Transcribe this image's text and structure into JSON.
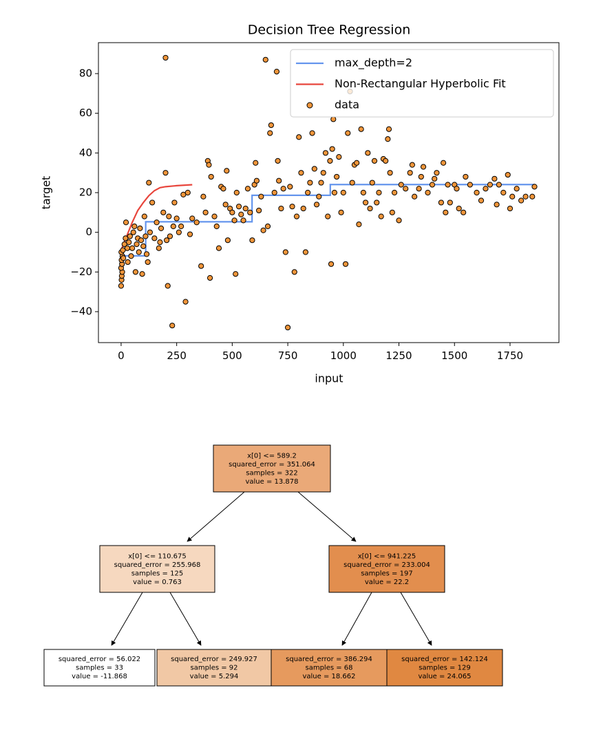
{
  "chart_data": {
    "type": "scatter",
    "title": "Decision Tree Regression",
    "x_label": "input",
    "y_label": "target",
    "xlim": [
      -102,
      1970
    ],
    "ylim": [
      -55.6,
      95.6
    ],
    "xticks": [
      0,
      250,
      500,
      750,
      1000,
      1250,
      1500,
      1750
    ],
    "yticks": [
      {
        "value": -40,
        "label": "−40"
      },
      {
        "value": -20,
        "label": "−20"
      },
      0,
      20,
      40,
      60,
      80
    ],
    "legend": "upper right",
    "series": [
      {
        "name": "max_depth=2",
        "type": "line",
        "color": "#6495ed",
        "x": [
          0,
          110.675,
          110.675,
          589.2,
          589.2,
          941.225,
          941.225,
          1860
        ],
        "values": [
          -11.868,
          -11.868,
          5.294,
          5.294,
          18.662,
          18.662,
          24.065,
          24.065
        ]
      },
      {
        "name": "Non-Rectangular Hyperbolic Fit",
        "type": "line",
        "color": "#e8453c",
        "x": [
          0,
          25,
          50,
          75,
          100,
          125,
          150,
          175,
          200,
          250,
          320
        ],
        "values": [
          -9,
          -2,
          5,
          11,
          15,
          18.5,
          21,
          22.5,
          23,
          23.5,
          24
        ]
      },
      {
        "name": "data",
        "type": "scatter",
        "color": "#f0953a",
        "x": [
          0,
          2,
          3,
          5,
          0,
          4,
          2,
          6,
          1,
          8,
          10,
          15,
          20,
          22,
          28,
          30,
          35,
          40,
          45,
          50,
          55,
          60,
          65,
          70,
          75,
          80,
          85,
          90,
          95,
          100,
          105,
          110,
          115,
          120,
          125,
          130,
          140,
          150,
          160,
          170,
          175,
          180,
          190,
          200,
          200,
          205,
          210,
          215,
          220,
          230,
          235,
          240,
          250,
          260,
          270,
          280,
          290,
          300,
          310,
          320,
          340,
          360,
          370,
          380,
          390,
          395,
          400,
          405,
          420,
          430,
          440,
          450,
          460,
          470,
          475,
          480,
          490,
          500,
          510,
          515,
          520,
          530,
          540,
          550,
          560,
          570,
          580,
          590,
          600,
          605,
          610,
          620,
          630,
          640,
          650,
          660,
          670,
          675,
          690,
          700,
          705,
          710,
          720,
          730,
          740,
          750,
          760,
          770,
          780,
          790,
          800,
          810,
          820,
          830,
          840,
          850,
          860,
          870,
          880,
          890,
          900,
          910,
          920,
          930,
          940,
          945,
          950,
          955,
          960,
          970,
          980,
          990,
          1000,
          1010,
          1020,
          1030,
          1040,
          1050,
          1060,
          1070,
          1080,
          1090,
          1100,
          1110,
          1120,
          1130,
          1140,
          1150,
          1160,
          1170,
          1180,
          1190,
          1200,
          1205,
          1210,
          1220,
          1230,
          1250,
          1260,
          1280,
          1300,
          1310,
          1320,
          1340,
          1350,
          1360,
          1380,
          1400,
          1410,
          1420,
          1440,
          1450,
          1460,
          1470,
          1480,
          1500,
          1510,
          1520,
          1540,
          1550,
          1570,
          1600,
          1620,
          1640,
          1660,
          1680,
          1690,
          1700,
          1720,
          1740,
          1750,
          1760,
          1780,
          1800,
          1820,
          1850,
          1860
        ],
        "values": [
          -27,
          -24,
          -22,
          -20,
          -18,
          -16,
          -14,
          -12,
          -10,
          -9,
          -13,
          -6,
          -3,
          5,
          -8,
          -15,
          -5,
          -2,
          -12,
          -8,
          0,
          3,
          -20,
          -6,
          -3,
          -10,
          2,
          -4,
          -21,
          -7,
          8,
          -2,
          -11,
          -15,
          25,
          0,
          15,
          -3,
          5,
          -8,
          -5,
          2,
          10,
          88,
          30,
          -4,
          -27,
          8,
          -2,
          -47,
          3,
          15,
          7,
          0,
          3,
          19,
          -35,
          20,
          -1,
          7,
          5,
          -17,
          18,
          10,
          36,
          34,
          -23,
          28,
          8,
          3,
          -8,
          23,
          22,
          14,
          31,
          -4,
          12,
          10,
          6,
          -21,
          20,
          13,
          9,
          6,
          12,
          22,
          10,
          -4,
          24,
          35,
          26,
          11,
          18,
          1,
          87,
          3,
          50,
          54,
          20,
          81,
          36,
          26,
          12,
          22,
          -10,
          -48,
          23,
          13,
          -20,
          8,
          48,
          30,
          12,
          -10,
          20,
          25,
          50,
          32,
          14,
          18,
          25,
          30,
          40,
          8,
          36,
          -16,
          42,
          57,
          20,
          28,
          38,
          10,
          20,
          -16,
          50,
          71,
          25,
          34,
          35,
          4,
          52,
          20,
          15,
          40,
          12,
          25,
          36,
          15,
          20,
          8,
          37,
          36,
          47,
          52,
          30,
          10,
          20,
          6,
          24,
          22,
          30,
          34,
          18,
          22,
          28,
          33,
          20,
          24,
          27,
          30,
          15,
          35,
          10,
          24,
          15,
          24,
          22,
          12,
          10,
          28,
          24,
          20,
          16,
          22,
          24,
          27,
          14,
          24,
          20,
          29,
          12,
          18,
          22,
          16,
          18,
          18,
          23
        ]
      }
    ]
  },
  "tree": {
    "nodes": [
      {
        "lines": [
          "x[0] <= 589.2",
          "squared_error = 351.064",
          "samples = 322",
          "value = 13.878"
        ],
        "color": "#eaa978"
      },
      {
        "lines": [
          "x[0] <= 110.675",
          "squared_error = 255.968",
          "samples = 125",
          "value = 0.763"
        ],
        "color": "#f6d8bf"
      },
      {
        "lines": [
          "x[0] <= 941.225",
          "squared_error = 233.004",
          "samples = 197",
          "value = 22.2"
        ],
        "color": "#e28e4e"
      },
      {
        "lines": [
          "squared_error = 56.022",
          "samples = 33",
          "value = -11.868"
        ],
        "color": "#ffffff"
      },
      {
        "lines": [
          "squared_error = 249.927",
          "samples = 92",
          "value = 5.294"
        ],
        "color": "#f1c8a5"
      },
      {
        "lines": [
          "squared_error = 386.294",
          "samples = 68",
          "value = 18.662"
        ],
        "color": "#e69a5e"
      },
      {
        "lines": [
          "squared_error = 142.124",
          "samples = 129",
          "value = 24.065"
        ],
        "color": "#e08841"
      }
    ]
  }
}
